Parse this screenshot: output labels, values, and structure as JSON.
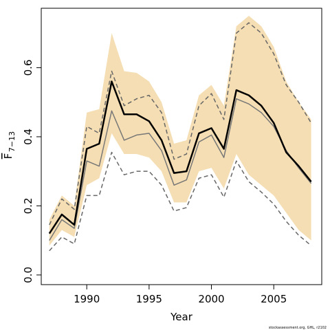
{
  "chart_data": {
    "type": "line",
    "xlabel": "Year",
    "ylabel_main": "F",
    "ylabel_sub": "7−13",
    "footer": "stockassessment.org, GHL, r2102",
    "xlim": [
      1986.35,
      2008.85
    ],
    "ylim": [
      -0.028,
      0.772
    ],
    "x_ticks": [
      1990,
      1995,
      2000,
      2005
    ],
    "x_tick_labels": [
      "1990",
      "1995",
      "2000",
      "2005"
    ],
    "y_ticks": [
      0.0,
      0.2,
      0.4,
      0.6
    ],
    "y_tick_labels": [
      "0.0",
      "0.2",
      "0.4",
      "0.6"
    ],
    "band_color": "#f5deb3",
    "x": [
      1987,
      1988,
      1989,
      1990,
      1991,
      1992,
      1993,
      1994,
      1995,
      1996,
      1997,
      1998,
      1999,
      2000,
      2001,
      2002,
      2003,
      2004,
      2005,
      2006,
      2007,
      2008
    ],
    "series": [
      {
        "kind": "band",
        "color": "#f5deb3",
        "lower": [
          0.085,
          0.13,
          0.11,
          0.26,
          0.28,
          0.41,
          0.35,
          0.35,
          0.34,
          0.3,
          0.21,
          0.21,
          0.3,
          0.31,
          0.25,
          0.35,
          0.29,
          0.26,
          0.23,
          0.18,
          0.13,
          0.1
        ],
        "upper": [
          0.16,
          0.23,
          0.2,
          0.47,
          0.48,
          0.7,
          0.59,
          0.585,
          0.56,
          0.5,
          0.38,
          0.39,
          0.52,
          0.55,
          0.49,
          0.72,
          0.75,
          0.72,
          0.66,
          0.56,
          0.5,
          0.45
        ]
      },
      {
        "kind": "dashed",
        "color": "#666666",
        "values": [
          0.145,
          0.22,
          0.19,
          0.43,
          0.41,
          0.59,
          0.49,
          0.51,
          0.52,
          0.47,
          0.335,
          0.35,
          0.49,
          0.525,
          0.45,
          0.7,
          0.73,
          0.7,
          0.64,
          0.55,
          0.5,
          0.44
        ]
      },
      {
        "kind": "dashed",
        "color": "#666666",
        "values": [
          0.07,
          0.11,
          0.09,
          0.23,
          0.23,
          0.355,
          0.29,
          0.3,
          0.3,
          0.26,
          0.185,
          0.195,
          0.28,
          0.29,
          0.225,
          0.33,
          0.27,
          0.24,
          0.205,
          0.155,
          0.115,
          0.085
        ]
      },
      {
        "kind": "grey",
        "color": "#777777",
        "values": [
          0.1,
          0.16,
          0.135,
          0.33,
          0.315,
          0.475,
          0.39,
          0.405,
          0.41,
          0.36,
          0.26,
          0.275,
          0.385,
          0.405,
          0.34,
          0.51,
          0.495,
          0.47,
          0.43,
          0.36,
          0.31,
          0.265
        ]
      },
      {
        "kind": "main",
        "color": "#000000",
        "values": [
          0.12,
          0.175,
          0.145,
          0.365,
          0.38,
          0.56,
          0.465,
          0.465,
          0.445,
          0.39,
          0.295,
          0.3,
          0.41,
          0.425,
          0.365,
          0.535,
          0.52,
          0.49,
          0.44,
          0.355,
          0.315,
          0.27
        ]
      }
    ]
  }
}
